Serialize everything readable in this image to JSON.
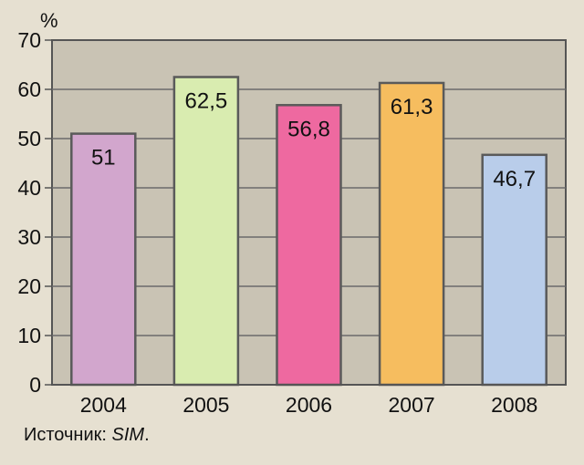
{
  "chart_data": {
    "type": "bar",
    "categories": [
      "2004",
      "2005",
      "2006",
      "2007",
      "2008"
    ],
    "values": [
      51,
      62.5,
      56.8,
      61.3,
      46.7
    ],
    "value_labels": [
      "51",
      "62,5",
      "56,8",
      "61,3",
      "46,7"
    ],
    "colors": [
      "#d2a6cd",
      "#d9ecb0",
      "#ee69a0",
      "#f6bd5f",
      "#b9cdea"
    ],
    "ylabel": "%",
    "ylim": [
      0,
      70
    ],
    "yticks": [
      0,
      10,
      20,
      30,
      40,
      50,
      60,
      70
    ],
    "grid": true,
    "plot_background": "#c9c3b4",
    "bar_edge_color": "#5a5a5a"
  },
  "source": {
    "prefix": "Источник: ",
    "name": "SIM",
    "suffix": "."
  }
}
